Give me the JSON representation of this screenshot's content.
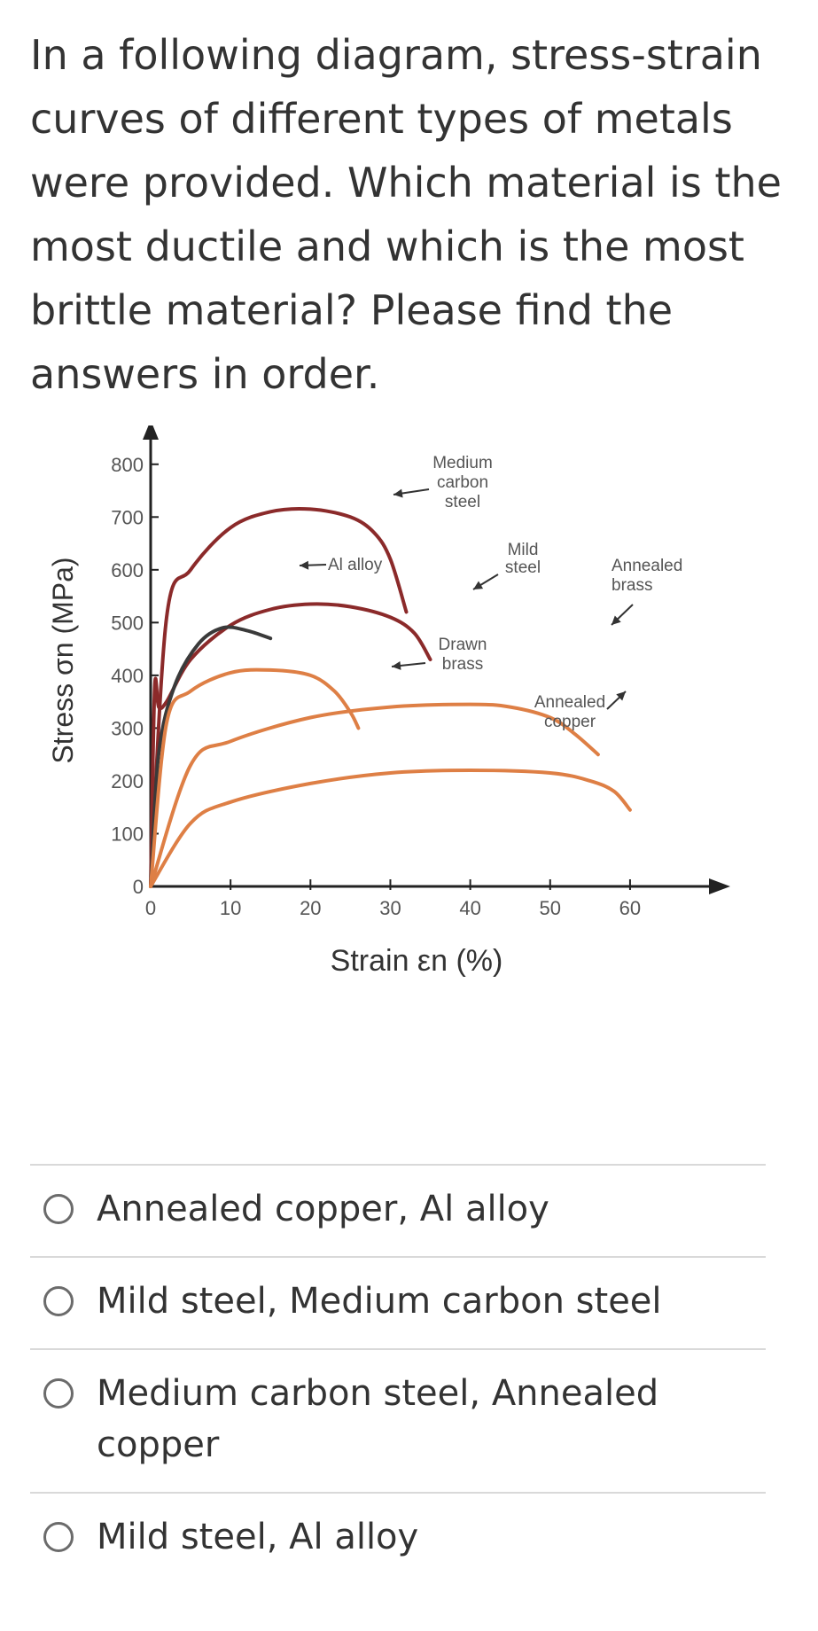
{
  "question": {
    "text": "In a following diagram, stress-strain curves of different types of metals were provided.  Which material is the most ductile and which is the most brittle material? Please find the answers in order."
  },
  "options": [
    {
      "label": "Annealed copper, Al alloy"
    },
    {
      "label": "Mild steel, Medium carbon steel"
    },
    {
      "label": "Medium carbon steel, Annealed copper"
    },
    {
      "label": "Mild steel, Al alloy"
    }
  ],
  "chart_data": {
    "type": "line",
    "xlabel": "Strain εn (%)",
    "ylabel": "Stress σn (MPa)",
    "xlim": [
      0,
      65
    ],
    "ylim": [
      0,
      850
    ],
    "x_ticks": [
      "0",
      "10",
      "20",
      "30",
      "40",
      "50",
      "60"
    ],
    "y_ticks": [
      "0",
      "100",
      "200",
      "300",
      "400",
      "500",
      "600",
      "700",
      "800"
    ],
    "grid": false,
    "series": [
      {
        "name": "Medium carbon steel",
        "color": "#8b2a2a",
        "label_lines": [
          "Medium",
          "carbon",
          "steel"
        ],
        "x": [
          0,
          2,
          5,
          10,
          15,
          20,
          25,
          28,
          30,
          32
        ],
        "y": [
          0,
          510,
          600,
          680,
          710,
          715,
          700,
          670,
          620,
          520
        ]
      },
      {
        "name": "Mild steel",
        "color": "#8b2a2a",
        "label_lines": [
          "Mild",
          "steel"
        ],
        "x": [
          0,
          0.5,
          1,
          2,
          5,
          10,
          15,
          20,
          25,
          30,
          33,
          35
        ],
        "y": [
          0,
          375,
          340,
          350,
          430,
          495,
          525,
          535,
          530,
          510,
          480,
          430
        ]
      },
      {
        "name": "Al alloy",
        "color": "#3a3a3a",
        "label_lines": [
          "Al alloy"
        ],
        "x": [
          0,
          1,
          3,
          6,
          9,
          12,
          15
        ],
        "y": [
          0,
          250,
          380,
          460,
          490,
          485,
          470
        ]
      },
      {
        "name": "Drawn brass",
        "color": "#de7f45",
        "label_lines": [
          "Drawn",
          "brass"
        ],
        "x": [
          0,
          2,
          5,
          10,
          15,
          20,
          23,
          25,
          26
        ],
        "y": [
          0,
          310,
          370,
          405,
          410,
          400,
          370,
          330,
          300
        ]
      },
      {
        "name": "Annealed brass",
        "color": "#de7f45",
        "label_lines": [
          "Annealed",
          "brass"
        ],
        "x": [
          0,
          5,
          10,
          20,
          30,
          40,
          45,
          50,
          53,
          56
        ],
        "y": [
          0,
          230,
          275,
          320,
          340,
          345,
          340,
          320,
          290,
          250
        ]
      },
      {
        "name": "Annealed copper",
        "color": "#de7f45",
        "label_lines": [
          "Annealed",
          "copper"
        ],
        "x": [
          0,
          5,
          10,
          20,
          30,
          40,
          50,
          55,
          58,
          60
        ],
        "y": [
          0,
          120,
          160,
          195,
          215,
          220,
          215,
          200,
          180,
          145
        ]
      }
    ]
  }
}
